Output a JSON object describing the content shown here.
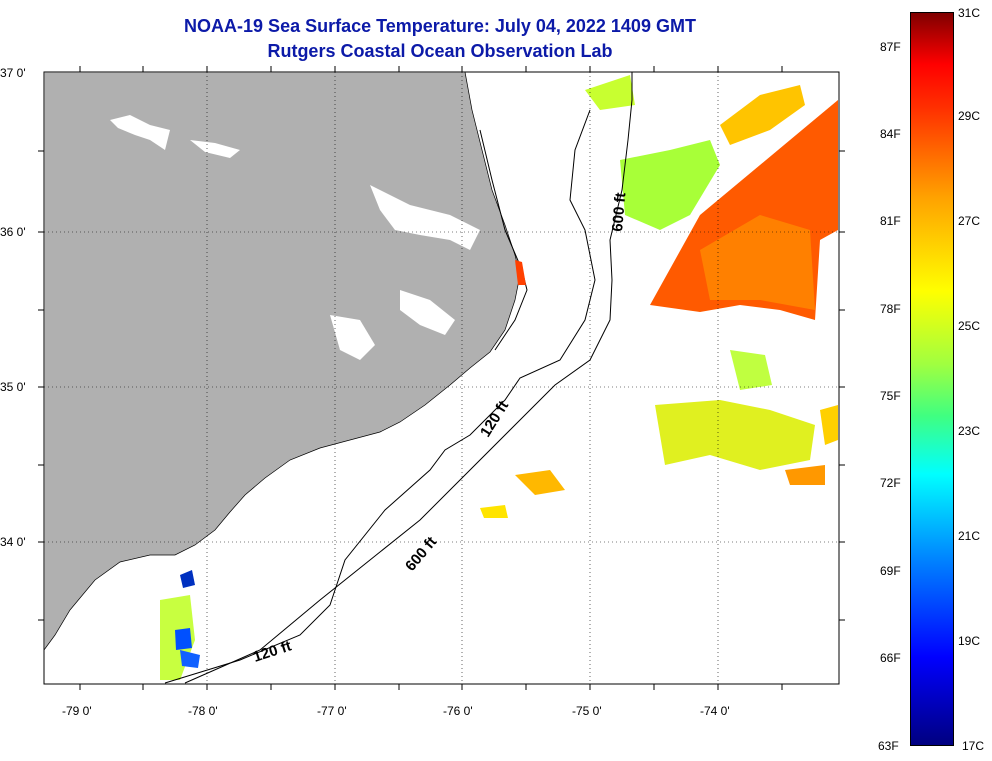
{
  "title": {
    "line1": "NOAA-19 Sea Surface Temperature:  July 04, 2022 1409 GMT",
    "line2": "Rutgers Coastal Ocean Observation Lab"
  },
  "axes": {
    "lat_labels": [
      "37 0'",
      "36 0'",
      "35 0'",
      "34 0'"
    ],
    "lon_labels": [
      "-79 0'",
      "-78 0'",
      "-77 0'",
      "-76 0'",
      "-75 0'",
      "-74 0'"
    ]
  },
  "contours": {
    "isobath_120": "120 ft",
    "isobath_600": "600 ft"
  },
  "colorbar": {
    "fahrenheit": [
      "87F",
      "84F",
      "81F",
      "78F",
      "75F",
      "72F",
      "69F",
      "66F",
      "63F"
    ],
    "celsius": [
      "31C",
      "29C",
      "27C",
      "25C",
      "23C",
      "21C",
      "19C",
      "17C"
    ]
  },
  "colors": {
    "land": "#b0b0b0",
    "title": "#0c1aa8",
    "warm": "#ff5a00",
    "mid": "#ffcc00",
    "cool": "#80ff40",
    "cold": "#0040ff"
  }
}
